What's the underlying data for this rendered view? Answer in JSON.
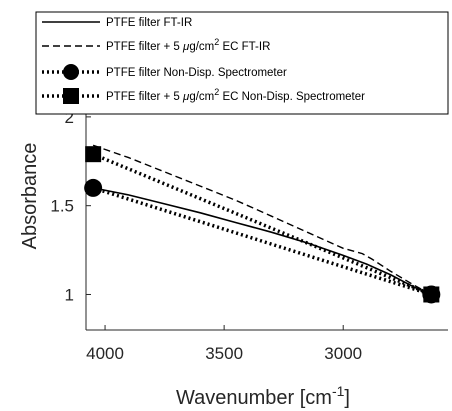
{
  "chart_data": {
    "type": "line",
    "xlabel": "Wavenumber [cm",
    "xlabel_sup": "-1",
    "xlabel_tail": "]",
    "ylabel": "Absorbance",
    "xlim": [
      2560,
      4080
    ],
    "ylim": [
      0.8,
      2.05
    ],
    "x_reversed": true,
    "xticks": [
      4000,
      3500,
      3000
    ],
    "xtick_labels": [
      "4000",
      "3500",
      "3000"
    ],
    "yticks": [
      1,
      1.5,
      2
    ],
    "ytick_labels": [
      "1",
      "1.5",
      "2"
    ],
    "grid": false,
    "legend_position": "top (overlapping plot top)",
    "series": [
      {
        "name": "PTFE filter FT-IR",
        "style": "solid",
        "x": [
          4050,
          3900,
          3750,
          3600,
          3450,
          3300,
          3150,
          3000,
          2900,
          2800,
          2700,
          2630
        ],
        "y": [
          1.6,
          1.56,
          1.51,
          1.46,
          1.405,
          1.35,
          1.29,
          1.22,
          1.17,
          1.11,
          1.04,
          1.0
        ]
      },
      {
        "name_parts": [
          "PTFE filter + 5 ",
          "μ",
          "g/cm",
          "2",
          " EC FT-IR"
        ],
        "style": "dashed",
        "x": [
          4050,
          3900,
          3750,
          3600,
          3450,
          3300,
          3150,
          3000,
          2920,
          2880,
          2800,
          2700,
          2630
        ],
        "y": [
          1.84,
          1.77,
          1.69,
          1.61,
          1.53,
          1.44,
          1.35,
          1.26,
          1.23,
          1.2,
          1.13,
          1.05,
          1.0
        ]
      },
      {
        "name": "PTFE filter Non-Disp. Spectrometer",
        "style": "dotted-circle",
        "x": [
          4050,
          2630
        ],
        "y": [
          1.6,
          1.0
        ]
      },
      {
        "name_parts": [
          "PTFE filter + 5 ",
          "μ",
          "g/cm",
          "2",
          " EC Non-Disp. Spectrometer"
        ],
        "style": "dotted-square",
        "x": [
          4050,
          2630
        ],
        "y": [
          1.79,
          1.0
        ]
      }
    ]
  }
}
